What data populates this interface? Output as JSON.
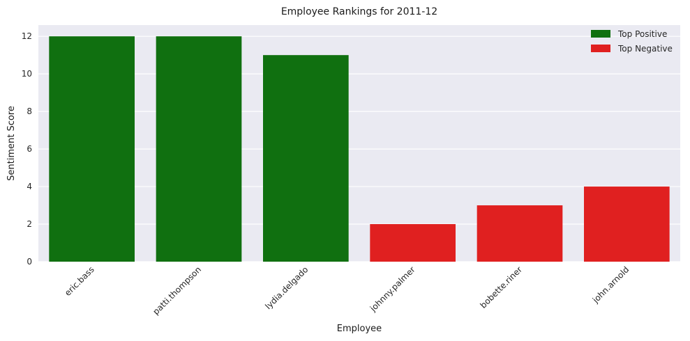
{
  "chart_data": {
    "type": "bar",
    "title": "Employee Rankings for 2011-12",
    "xlabel": "Employee",
    "ylabel": "Sentiment Score",
    "categories": [
      "eric.bass",
      "patti.thompson",
      "lydia.delgado",
      "johnny.palmer",
      "bobette.riner",
      "john.arnold"
    ],
    "values": [
      12,
      12,
      11,
      2,
      3,
      4
    ],
    "groups": [
      "Top Positive",
      "Top Positive",
      "Top Positive",
      "Top Negative",
      "Top Negative",
      "Top Negative"
    ],
    "ylim": [
      0,
      12.6
    ],
    "yticks": [
      0,
      2,
      4,
      6,
      8,
      10,
      12
    ],
    "grid": true,
    "legend": {
      "placement": "top-right",
      "entries": [
        {
          "label": "Top Positive",
          "color": "#107010"
        },
        {
          "label": "Top Negative",
          "color": "#e02020"
        }
      ]
    },
    "colors": {
      "Top Positive": "#107010",
      "Top Negative": "#e02020",
      "plot_background": "#eaeaf2",
      "grid": "#ffffff"
    }
  }
}
